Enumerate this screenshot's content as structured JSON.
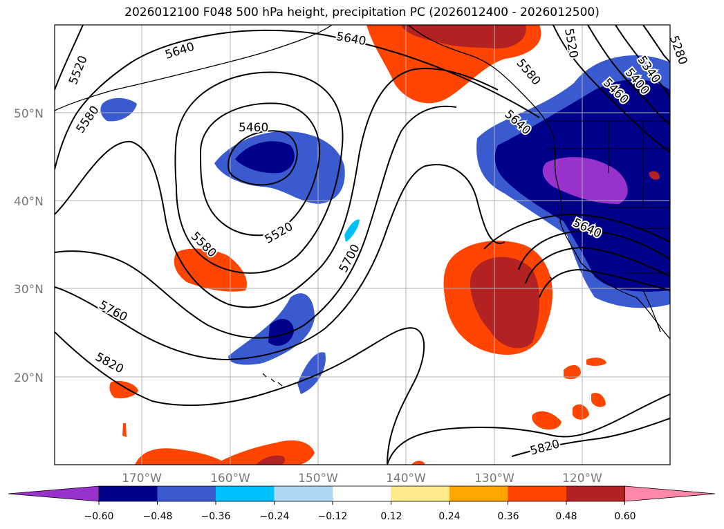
{
  "title": "2026012100 F048 500 hPa height, precipitation PC (2026012400 - 2026012500)",
  "axes": {
    "lat_labels": [
      "50°N",
      "40°N",
      "30°N",
      "20°N"
    ],
    "lon_labels": [
      "170°W",
      "160°W",
      "150°W",
      "140°W",
      "130°W",
      "120°W"
    ]
  },
  "contour_labels": [
    "5640",
    "5640",
    "5520",
    "5580",
    "5460",
    "5520",
    "5580",
    "5700",
    "5760",
    "5820",
    "5580",
    "5640",
    "5640",
    "5400",
    "5460",
    "5340",
    "5280",
    "5520",
    "5820"
  ],
  "colorbar": {
    "tick_labels": [
      "−0.60",
      "−0.48",
      "−0.36",
      "−0.24",
      "−0.12",
      "0.12",
      "0.24",
      "0.36",
      "0.48",
      "0.60"
    ],
    "colors": [
      "#9932cc",
      "#00008b",
      "#3a5bd0",
      "#00bfff",
      "#add8f5",
      "#ffffff",
      "#ffe98a",
      "#ffa500",
      "#ff4500",
      "#b22222",
      "#ff88aa"
    ]
  }
}
